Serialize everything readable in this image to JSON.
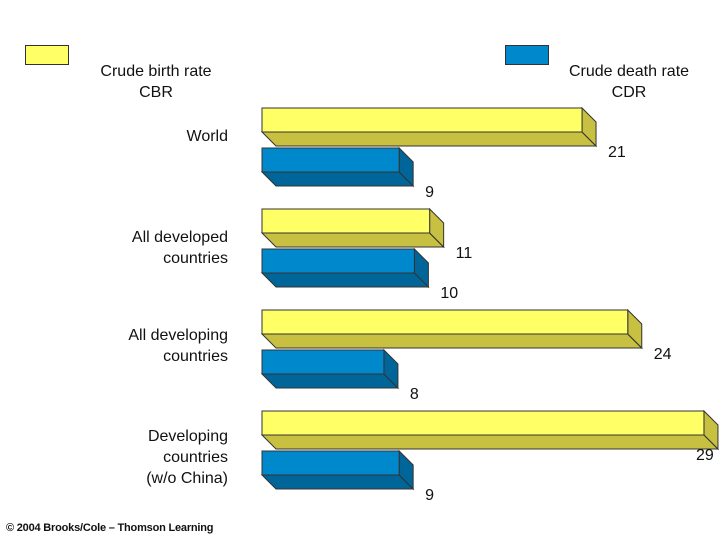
{
  "legend": {
    "birth": {
      "line1": "Crude birth rate",
      "line2": "CBR"
    },
    "death": {
      "line1": "Crude death rate",
      "line2": "CDR"
    }
  },
  "colors": {
    "birth_front": "#ffff66",
    "birth_side": "#c8c040",
    "death_front": "#0088cc",
    "death_side": "#006699"
  },
  "chart_data": {
    "type": "bar",
    "orientation": "horizontal",
    "categories": [
      [
        "World"
      ],
      [
        "All developed",
        "countries"
      ],
      [
        "All developing",
        "countries"
      ],
      [
        "Developing",
        "countries",
        "(w/o China)"
      ]
    ],
    "series": [
      {
        "name": "Crude birth rate CBR",
        "values": [
          21,
          11,
          24,
          29
        ]
      },
      {
        "name": "Crude death rate CDR",
        "values": [
          9,
          10,
          8,
          9
        ]
      }
    ],
    "xlim": [
      0,
      29
    ],
    "bar_style": "3d"
  },
  "footer": {
    "copyright": "© 2004 Brooks/Cole – Thomson Learning"
  }
}
